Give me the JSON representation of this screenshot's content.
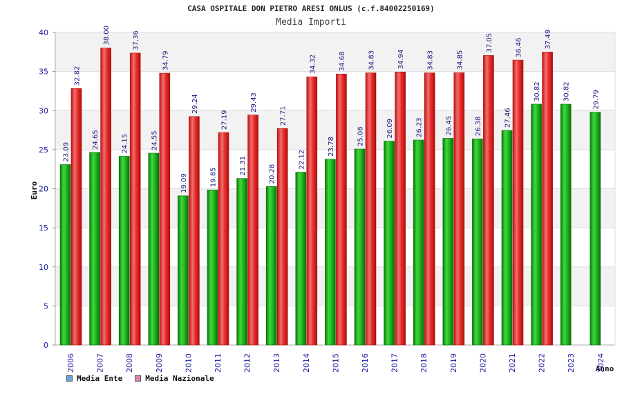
{
  "chart_data": {
    "type": "bar",
    "title": "CASA OSPITALE DON PIETRO ARESI ONLUS (c.f.84002250169)",
    "subtitle": "Media Importi",
    "xlabel": "Anno",
    "ylabel": "Euro",
    "ylim": [
      0,
      40
    ],
    "yticks": [
      0,
      5,
      10,
      15,
      20,
      25,
      30,
      35,
      40
    ],
    "categories": [
      "2006",
      "2007",
      "2008",
      "2009",
      "2010",
      "2011",
      "2012",
      "2013",
      "2014",
      "2015",
      "2016",
      "2017",
      "2018",
      "2019",
      "2020",
      "2021",
      "2022",
      "2023",
      "2024"
    ],
    "series": [
      {
        "name": "Media Ente",
        "color": "#22bb22",
        "values": [
          23.09,
          24.65,
          24.15,
          24.55,
          19.09,
          19.85,
          21.31,
          20.28,
          22.12,
          23.78,
          25.08,
          26.09,
          26.23,
          26.45,
          26.38,
          27.46,
          30.82,
          30.82,
          29.79
        ]
      },
      {
        "name": "Media Nazionale",
        "color": "#ee2222",
        "values": [
          32.82,
          38.0,
          37.36,
          34.79,
          29.24,
          27.19,
          29.43,
          27.71,
          34.32,
          34.68,
          34.83,
          34.94,
          34.83,
          34.85,
          37.05,
          36.46,
          37.49,
          null,
          null
        ]
      }
    ],
    "legend": [
      {
        "label": "Media Ente",
        "color": "#66a3e0"
      },
      {
        "label": "Media Nazionale",
        "color": "#e080b0"
      }
    ]
  }
}
